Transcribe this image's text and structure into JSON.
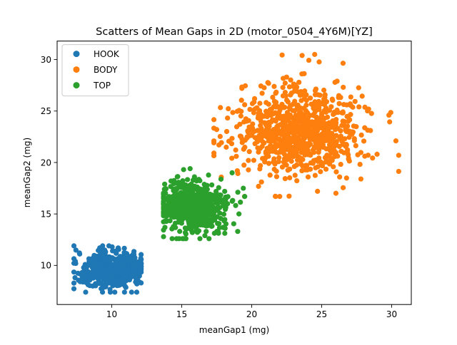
{
  "chart_data": {
    "type": "scatter",
    "title": "Scatters of Mean Gaps in 2D (motor_0504_4Y6M)[YZ]",
    "xlabel": "meanGap1 (mg)",
    "ylabel": "meanGap2 (mg)",
    "xlim": [
      6.1,
      31.4
    ],
    "ylim": [
      6.2,
      31.8
    ],
    "xticks": [
      10,
      15,
      20,
      25,
      30
    ],
    "yticks": [
      10,
      15,
      20,
      25,
      30
    ],
    "grid": false,
    "legend_position": "top-left",
    "series": [
      {
        "name": "HOOK",
        "color": "#1f77b4",
        "cluster": {
          "center": [
            10.0,
            9.6
          ],
          "spread": [
            1.1,
            0.9
          ],
          "x_range": [
            7.3,
            12.1
          ],
          "y_range": [
            7.4,
            11.9
          ],
          "count": 500
        },
        "outliers": [
          [
            7.4,
            10.4
          ],
          [
            12.0,
            9.4
          ],
          [
            11.8,
            8.2
          ],
          [
            9.9,
            7.4
          ],
          [
            9.8,
            11.9
          ]
        ]
      },
      {
        "name": "BODY",
        "color": "#ff7f0e",
        "cluster": {
          "center": [
            23.5,
            23.0
          ],
          "spread": [
            2.2,
            2.1
          ],
          "x_range": [
            17.3,
            30.5
          ],
          "y_range": [
            16.7,
            30.5
          ],
          "count": 900
        },
        "outliers": [
          [
            17.5,
            23.2
          ],
          [
            19.3,
            27.2
          ],
          [
            29.8,
            24.6
          ],
          [
            30.5,
            20.7
          ],
          [
            30.3,
            22.1
          ],
          [
            22.0,
            16.7
          ],
          [
            24.7,
            17.2
          ],
          [
            23.6,
            30.4
          ],
          [
            24.5,
            30.5
          ],
          [
            18.9,
            20.6
          ],
          [
            27.8,
            18.4
          ],
          [
            26.1,
            27.9
          ]
        ]
      },
      {
        "name": "TOP",
        "color": "#2ca02c",
        "cluster": {
          "center": [
            15.8,
            15.7
          ],
          "spread": [
            1.15,
            1.1
          ],
          "x_range": [
            13.7,
            19.5
          ],
          "y_range": [
            12.6,
            19.4
          ],
          "count": 700
        },
        "outliers": [
          [
            13.8,
            13.7
          ],
          [
            13.7,
            15.0
          ],
          [
            19.5,
            16.7
          ],
          [
            19.4,
            17.5
          ],
          [
            18.6,
            19.0
          ],
          [
            19.0,
            13.3
          ],
          [
            15.6,
            19.4
          ],
          [
            16.3,
            12.6
          ]
        ]
      }
    ]
  }
}
